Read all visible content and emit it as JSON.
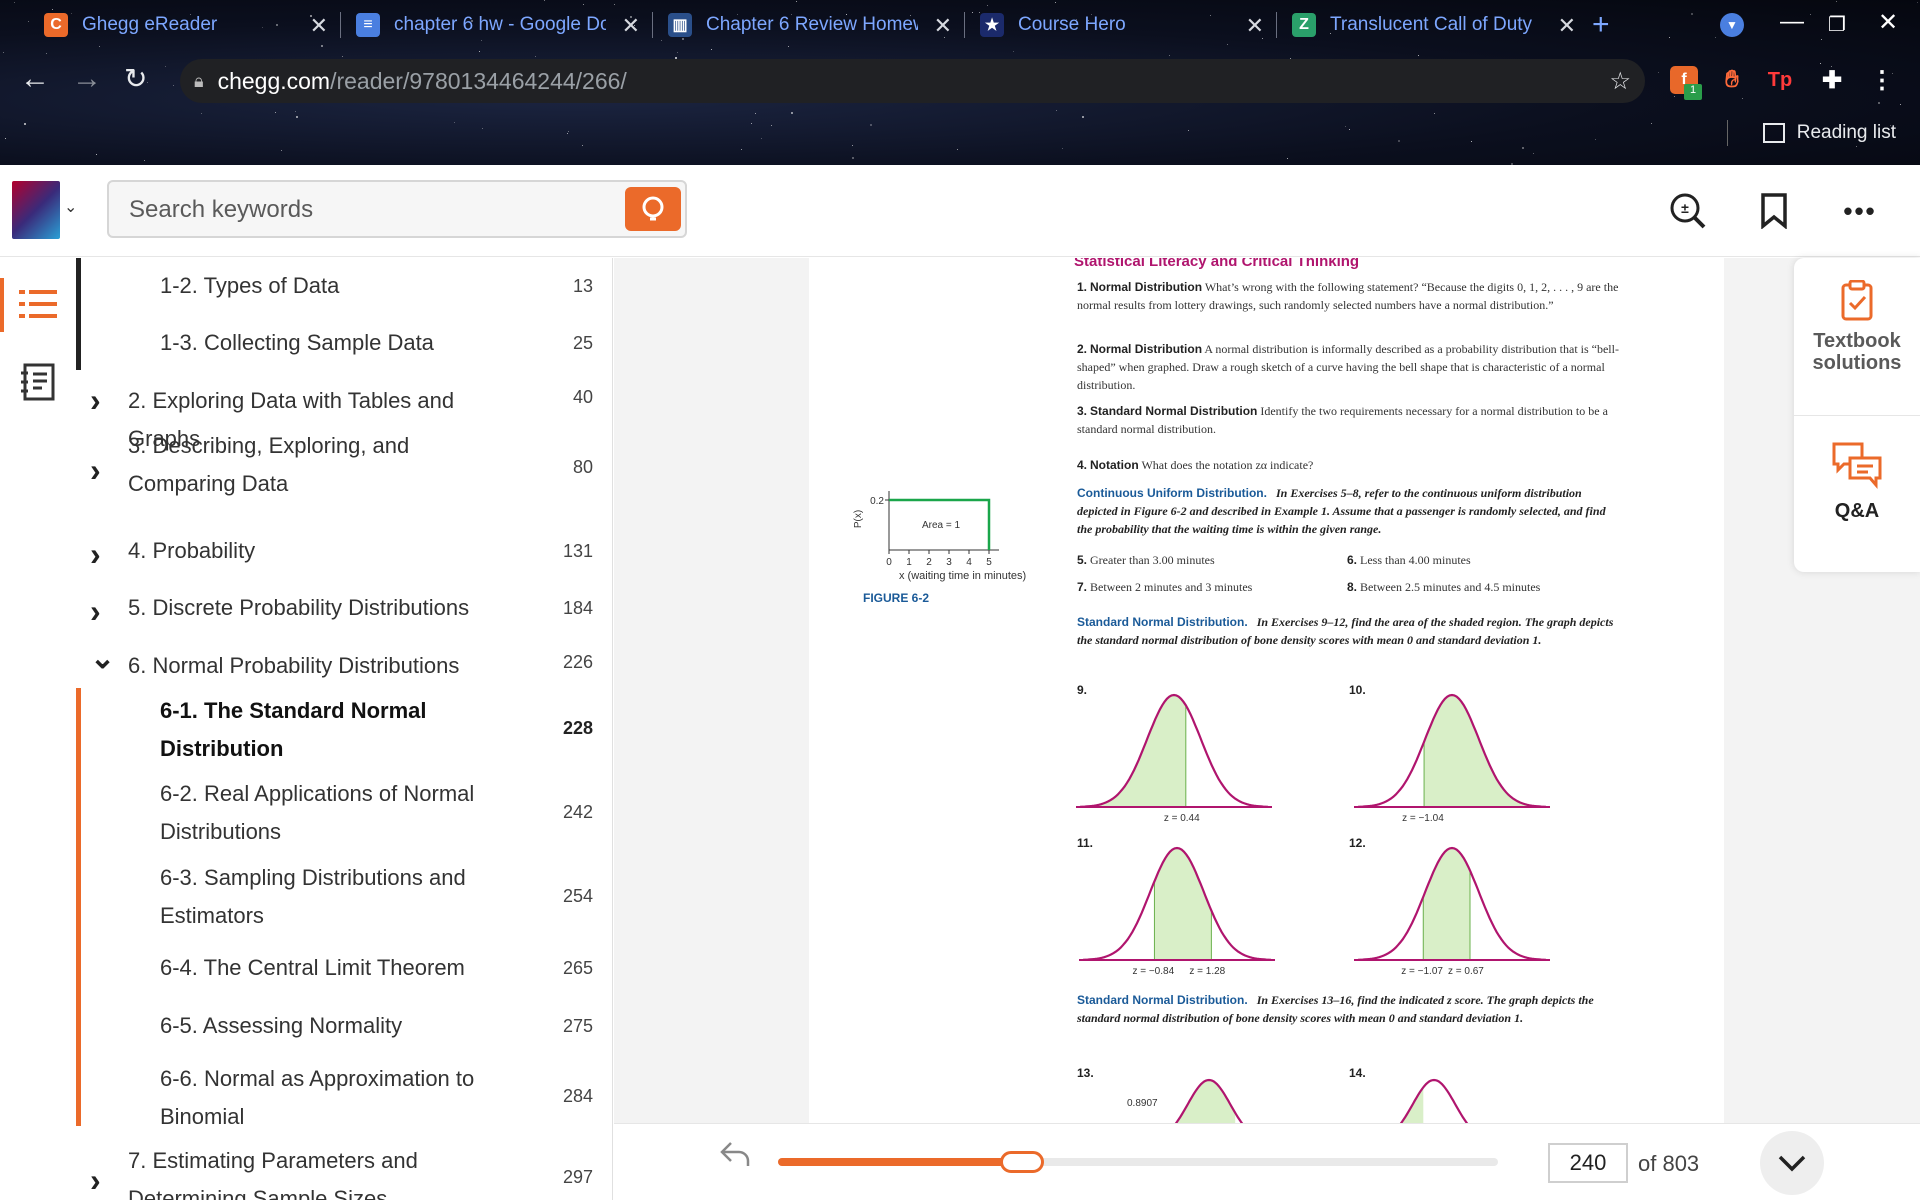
{
  "browser": {
    "tabs": [
      {
        "label": "Ghegg eReader",
        "fav_color": "#eb6a2a",
        "fav_char": "C",
        "icon": "chegg-icon"
      },
      {
        "label": "chapter 6 hw - Google Do",
        "fav_color": "#4a7fe0",
        "fav_char": "≡",
        "icon": "docs-icon"
      },
      {
        "label": "Chapter 6 Review Homew",
        "fav_color": "#2a4f8a",
        "fav_char": "▥",
        "icon": "homework-icon"
      },
      {
        "label": "Course Hero",
        "fav_color": "#1b2a6b",
        "fav_char": "★",
        "icon": "coursehero-icon"
      },
      {
        "label": "Translucent Call of Duty",
        "fav_color": "#2aa06a",
        "fav_char": "Z",
        "icon": "zedge-icon"
      }
    ],
    "new_tab": "+",
    "url_host": "chegg.com",
    "url_path": "/reader/9780134464244/266/",
    "reading_list": "Reading list",
    "extension_badge": "1"
  },
  "header": {
    "search_placeholder": "Search keywords",
    "more": "•••"
  },
  "toc": {
    "items": [
      {
        "title": "1-2. Types of Data",
        "page": "13",
        "level": 2,
        "top": 0
      },
      {
        "title": "1-3. Collecting Sample Data",
        "page": "25",
        "level": 2,
        "top": 57
      },
      {
        "title": "2. Exploring Data with Tables and Graphs",
        "page": "40",
        "level": 1
      },
      {
        "title": "3. Describing, Exploring, and Comparing Data",
        "page": "80",
        "level": 1
      },
      {
        "title": "4. Probability",
        "page": "131",
        "level": 1
      },
      {
        "title": "5. Discrete Probability Distributions",
        "page": "184",
        "level": 1
      },
      {
        "title": "6. Normal Probability Distributions",
        "page": "226",
        "level": 1,
        "expanded": true
      },
      {
        "title": "6-1. The Standard Normal Distribution",
        "page": "228",
        "level": 2,
        "active": true
      },
      {
        "title": "6-2. Real Applications of Normal Distributions",
        "page": "242",
        "level": 2
      },
      {
        "title": "6-3. Sampling Distributions and Estimators",
        "page": "254",
        "level": 2
      },
      {
        "title": "6-4. The Central Limit Theorem",
        "page": "265",
        "level": 2
      },
      {
        "title": "6-5. Assessing Normality",
        "page": "275",
        "level": 2
      },
      {
        "title": "6-6. Normal as Approximation to Binomial",
        "page": "284",
        "level": 2
      },
      {
        "title": "7. Estimating Parameters and Determining Sample Sizes",
        "page": "297",
        "level": 1
      }
    ]
  },
  "book_page": {
    "section_heading": "Statistical Literacy and Critical Thinking",
    "exercises": [
      {
        "num": "1.",
        "head": "Normal Distribution",
        "text": "What’s wrong with the following statement? “Because the digits 0, 1, 2, . . . , 9 are the normal results from lottery drawings, such randomly selected numbers have a normal distribution.”"
      },
      {
        "num": "2.",
        "head": "Normal Distribution",
        "text": "A normal distribution is informally described as a probability distribution that is “bell-shaped” when graphed. Draw a rough sketch of a curve having the bell shape that is characteristic of a normal distribution."
      },
      {
        "num": "3.",
        "head": "Standard Normal Distribution",
        "text": "Identify the two requirements necessary for a normal distribution to be a standard normal distribution."
      },
      {
        "num": "4.",
        "head": "Notation",
        "text": "What does the notation zα indicate?"
      }
    ],
    "uniform_intro_head": "Continuous Uniform Distribution.",
    "uniform_intro": "In Exercises 5–8, refer to the continuous uniform distribution depicted in Figure 6-2 and described in Example 1. Assume that a passenger is randomly selected, and find the probability that the waiting time is within the given range.",
    "uniform_ex": [
      {
        "num": "5.",
        "text": "Greater than 3.00 minutes"
      },
      {
        "num": "6.",
        "text": "Less than 4.00 minutes"
      },
      {
        "num": "7.",
        "text": "Between 2 minutes and 3 minutes"
      },
      {
        "num": "8.",
        "text": "Between 2.5 minutes and 4.5 minutes"
      }
    ],
    "figure": {
      "caption": "FIGURE 6-2",
      "ylabel": "P(x)",
      "ytick": "0.2",
      "area_label": "Area = 1",
      "xticks": [
        "0",
        "1",
        "2",
        "3",
        "4",
        "5"
      ],
      "xlabel": "x (waiting time in minutes)",
      "x_range": [
        0,
        5
      ],
      "height": 0.2,
      "color": "#1aa64a"
    },
    "std_intro_head": "Standard Normal Distribution.",
    "std_intro": "In Exercises 9–12, find the area of the shaded region. The graph depicts the standard normal distribution of bone density scores with mean 0 and standard deviation 1.",
    "curves": [
      {
        "num": "9.",
        "from": -3.5,
        "to": 0.44,
        "labels": [
          "z = 0.44"
        ]
      },
      {
        "num": "10.",
        "from": -1.04,
        "to": 3.5,
        "labels": [
          "z = −1.04"
        ]
      },
      {
        "num": "11.",
        "from": -0.84,
        "to": 1.28,
        "labels": [
          "z = −0.84",
          "z = 1.28"
        ]
      },
      {
        "num": "12.",
        "from": -1.07,
        "to": 0.67,
        "labels": [
          "z = −1.07",
          "z = 0.67"
        ]
      }
    ],
    "std_intro2_head": "Standard Normal Distribution.",
    "std_intro2": "In Exercises 13–16, find the indicated z score. The graph depicts the standard normal distribution of bone density scores with mean 0 and standard deviation 1.",
    "ex13": "13.",
    "ex13_area": "0.8907",
    "ex14": "14.",
    "curve_color": "#b0156e",
    "fill_color": "#d9efc8"
  },
  "side_panel": {
    "textbook_solutions": "Textbook solutions",
    "qa": "Q&A"
  },
  "bottom": {
    "current_page": "240",
    "of_total": "of 803",
    "progress_fraction": 0.32
  }
}
